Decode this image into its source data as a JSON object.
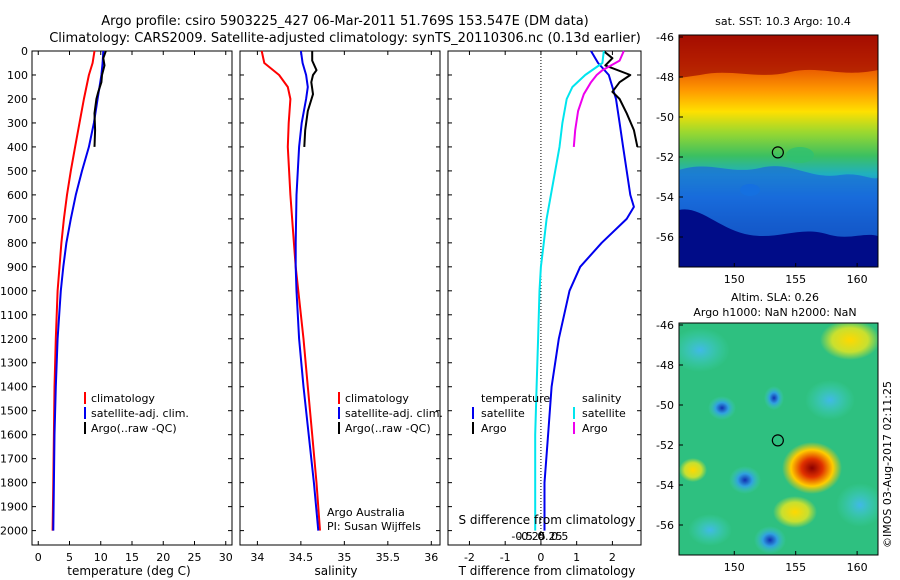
{
  "header": {
    "title_line1": "Argo profile: csiro 5903225_427 06-Mar-2011 51.769S 153.547E (DM data)",
    "title_line2": "Climatology: CARS2009. Satellite-adjusted climatology: synTS_20110306.nc (0.13d earlier)"
  },
  "colors": {
    "climatology": "#ff0000",
    "satellite": "#0000ee",
    "argo": "#000000",
    "satellite_salinity": "#00e5ee",
    "argo_salinity": "#ee00ee"
  },
  "chart_data": [
    {
      "type": "line",
      "xlabel": "temperature (deg C)",
      "ylabel": "",
      "xlim": [
        -1,
        31
      ],
      "ylim": [
        2060,
        0
      ],
      "xticks": [
        "0",
        "5",
        "10",
        "15",
        "20",
        "25",
        "30"
      ],
      "yticks": [
        "0",
        "100",
        "200",
        "300",
        "400",
        "500",
        "600",
        "700",
        "800",
        "900",
        "1000",
        "1100",
        "1200",
        "1300",
        "1400",
        "1500",
        "1600",
        "1700",
        "1800",
        "1900",
        "2000"
      ],
      "legend": [
        "climatology",
        "satellite-adj. clim.",
        "Argo(..raw -QC)"
      ],
      "series": [
        {
          "name": "climatology",
          "depth": [
            0,
            50,
            100,
            150,
            200,
            300,
            400,
            500,
            600,
            700,
            800,
            900,
            1000,
            1200,
            1400,
            1600,
            1800,
            2000
          ],
          "values": [
            9.0,
            8.7,
            8.1,
            7.7,
            7.3,
            6.6,
            5.9,
            5.2,
            4.6,
            4.1,
            3.7,
            3.4,
            3.1,
            2.8,
            2.6,
            2.5,
            2.4,
            2.3
          ]
        },
        {
          "name": "satellite-adj. clim.",
          "depth": [
            0,
            50,
            100,
            150,
            200,
            300,
            400,
            500,
            600,
            700,
            800,
            900,
            1000,
            1200,
            1400,
            1600,
            1800,
            2000
          ],
          "values": [
            10.4,
            10.3,
            10.1,
            9.8,
            9.5,
            8.9,
            8.1,
            7.0,
            6.0,
            5.2,
            4.5,
            4.0,
            3.6,
            3.1,
            2.8,
            2.6,
            2.5,
            2.4
          ]
        },
        {
          "name": "Argo(..raw -QC)",
          "depth": [
            0,
            30,
            60,
            100,
            130,
            170,
            200,
            260,
            330,
            400
          ],
          "values": [
            10.8,
            10.4,
            10.6,
            10.2,
            10.1,
            9.6,
            9.3,
            9.0,
            9.1,
            9.0
          ]
        }
      ]
    },
    {
      "type": "line",
      "xlabel": "salinity",
      "ylabel": "",
      "xlim": [
        33.8,
        36.1
      ],
      "ylim": [
        2060,
        0
      ],
      "xticks": [
        "34",
        "34.5",
        "35",
        "35.5",
        "36"
      ],
      "legend": [
        "climatology",
        "satellite-adj. clim.",
        "Argo(..raw -QC)"
      ],
      "annotation": [
        "Argo Australia",
        "PI: Susan Wijffels"
      ],
      "series": [
        {
          "name": "climatology",
          "depth": [
            0,
            50,
            100,
            150,
            200,
            300,
            400,
            600,
            800,
            900,
            1000,
            1200,
            1400,
            1600,
            1800,
            2000
          ],
          "values": [
            34.05,
            34.08,
            34.25,
            34.35,
            34.38,
            34.36,
            34.35,
            34.38,
            34.42,
            34.44,
            34.47,
            34.53,
            34.58,
            34.63,
            34.68,
            34.72
          ]
        },
        {
          "name": "satellite-adj. clim.",
          "depth": [
            0,
            50,
            100,
            150,
            200,
            300,
            400,
            600,
            800,
            900,
            1000,
            1200,
            1400,
            1600,
            1800,
            2000
          ],
          "values": [
            34.5,
            34.52,
            34.56,
            34.58,
            34.56,
            34.51,
            34.48,
            34.45,
            34.44,
            34.44,
            34.45,
            34.48,
            34.53,
            34.59,
            34.65,
            34.7
          ]
        },
        {
          "name": "Argo(..raw -QC)",
          "depth": [
            0,
            40,
            80,
            100,
            130,
            180,
            250,
            330,
            400
          ],
          "values": [
            34.63,
            34.63,
            34.68,
            34.64,
            34.62,
            34.64,
            34.58,
            34.55,
            34.54
          ]
        }
      ]
    },
    {
      "type": "line",
      "xlabel": "T difference from climatology",
      "xlabel_top": "S difference from climatology",
      "ylabel": "",
      "xlim": [
        -2.6,
        2.8
      ],
      "ylim": [
        2060,
        0
      ],
      "xticks": [
        "-2",
        "-1",
        "0",
        "1",
        "2"
      ],
      "xticks_top": [
        "-0.5",
        "-0.25",
        "0",
        "0.25",
        "0.5"
      ],
      "legend_left_title": "temperature",
      "legend_right_title": "salinity",
      "legend": [
        "satellite",
        "Argo",
        "satellite",
        "Argo"
      ],
      "series": [
        {
          "name": "satellite",
          "variable": "temperature",
          "depth": [
            0,
            50,
            100,
            150,
            200,
            300,
            400,
            500,
            600,
            650,
            700,
            800,
            900,
            1000,
            1200,
            1400,
            1600,
            1800,
            2000
          ],
          "values": [
            1.4,
            1.6,
            1.9,
            2.0,
            2.1,
            2.2,
            2.3,
            2.4,
            2.5,
            2.6,
            2.4,
            1.7,
            1.1,
            0.8,
            0.5,
            0.3,
            0.2,
            0.1,
            0.1
          ]
        },
        {
          "name": "Argo",
          "variable": "temperature",
          "depth": [
            0,
            30,
            60,
            100,
            130,
            170,
            200,
            260,
            330,
            400
          ],
          "values": [
            1.75,
            2.0,
            1.8,
            2.5,
            2.2,
            2.0,
            2.2,
            2.4,
            2.6,
            2.7
          ]
        },
        {
          "name": "satellite",
          "variable": "salinity",
          "depth": [
            0,
            50,
            100,
            150,
            200,
            300,
            400,
            500,
            600,
            700,
            800,
            900,
            1000,
            1200,
            1400,
            1600,
            1800,
            2000
          ],
          "values": [
            0.44,
            0.43,
            0.31,
            0.22,
            0.18,
            0.15,
            0.13,
            0.1,
            0.07,
            0.04,
            0.02,
            0.0,
            -0.01,
            -0.02,
            -0.03,
            -0.04,
            -0.04,
            -0.04
          ]
        },
        {
          "name": "Argo",
          "variable": "salinity",
          "depth": [
            0,
            40,
            80,
            100,
            130,
            180,
            250,
            330,
            400
          ],
          "values": [
            0.58,
            0.55,
            0.43,
            0.39,
            0.35,
            0.3,
            0.26,
            0.24,
            0.23
          ]
        }
      ]
    },
    {
      "type": "heatmap",
      "title": "sat. SST: 10.3 Argo: 10.4",
      "xticks": [
        "150",
        "155",
        "160"
      ],
      "yticks": [
        "-46",
        "-48",
        "-50",
        "-52",
        "-54",
        "-56"
      ],
      "xlim": [
        145.5,
        161.7
      ],
      "ylim": [
        -57.5,
        -45.9
      ],
      "marker": [
        153.547,
        -51.769
      ]
    },
    {
      "type": "heatmap",
      "title": "Altim. SLA: 0.26",
      "subtitle": "Argo h1000: NaN h2000: NaN",
      "xticks": [
        "150",
        "155",
        "160"
      ],
      "yticks": [
        "-46",
        "-48",
        "-50",
        "-52",
        "-54",
        "-56"
      ],
      "xlim": [
        145.5,
        161.7
      ],
      "ylim": [
        -57.5,
        -45.9
      ],
      "marker": [
        153.547,
        -51.769
      ]
    }
  ],
  "footer": {
    "stamp": "©IMOS 03-Aug-2017 02:11:25"
  }
}
